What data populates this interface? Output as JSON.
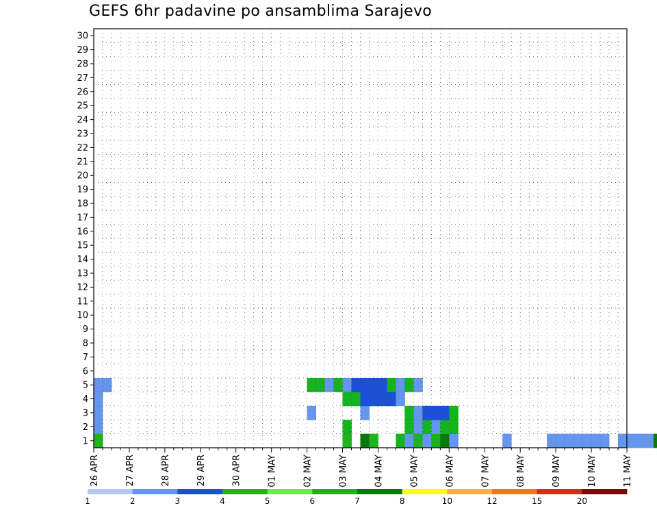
{
  "title": "GEFS 6hr padavine po ansamblima Sarajevo",
  "chart_data": {
    "type": "heatmap",
    "title": "GEFS 6hr padavine po ansamblima Sarajevo",
    "y_ticks": [
      "1",
      "2",
      "3",
      "4",
      "5",
      "6",
      "7",
      "8",
      "9",
      "10",
      "11",
      "12",
      "13",
      "14",
      "15",
      "16",
      "17",
      "18",
      "19",
      "20",
      "21",
      "22",
      "23",
      "24",
      "25",
      "26",
      "27",
      "28",
      "29",
      "30"
    ],
    "x_ticks": [
      "26 APR",
      "27 APR",
      "28 APR",
      "29 APR",
      "30 APR",
      "01 MAY",
      "02 MAY",
      "03 MAY",
      "04 MAY",
      "05 MAY",
      "06 MAY",
      "07 MAY",
      "08 MAY",
      "09 MAY",
      "10 MAY",
      "11 MAY"
    ],
    "steps_per_day": 4,
    "legend": {
      "labels": [
        "1",
        "2",
        "3",
        "4",
        "5",
        "6",
        "7",
        "8",
        "10",
        "12",
        "15",
        "20"
      ],
      "colors": [
        "#b4c8f5",
        "#6496ed",
        "#1e50d7",
        "#1eb41e",
        "#6ee650",
        "#14b41e",
        "#0a780a",
        "#ffff14",
        "#ffb432",
        "#f5780a",
        "#dc281e",
        "#780a0a"
      ]
    },
    "members": [
      {
        "member": 1,
        "cells": [
          [
            0,
            3
          ],
          [
            28,
            3
          ],
          [
            30,
            6
          ],
          [
            31,
            3
          ],
          [
            34,
            5
          ],
          [
            35,
            1
          ],
          [
            36,
            3
          ],
          [
            37,
            1
          ],
          [
            38,
            5
          ],
          [
            39,
            6
          ],
          [
            40,
            1
          ],
          [
            46,
            1
          ],
          [
            51,
            1
          ],
          [
            52,
            1
          ],
          [
            53,
            1
          ],
          [
            54,
            1
          ],
          [
            55,
            1
          ],
          [
            56,
            1
          ],
          [
            57,
            1
          ],
          [
            59,
            1
          ],
          [
            60,
            1
          ],
          [
            61,
            1
          ],
          [
            62,
            1
          ],
          [
            63,
            6
          ],
          [
            64,
            1
          ],
          [
            65,
            1
          ],
          [
            66,
            1
          ],
          [
            67,
            1
          ]
        ]
      },
      {
        "member": 2,
        "cells": [
          [
            0,
            1
          ],
          [
            28,
            5
          ],
          [
            35,
            5
          ],
          [
            36,
            1
          ],
          [
            37,
            5
          ],
          [
            38,
            1
          ],
          [
            39,
            5
          ],
          [
            40,
            5
          ]
        ]
      },
      {
        "member": 3,
        "cells": [
          [
            0,
            1
          ],
          [
            24,
            1
          ],
          [
            30,
            1
          ],
          [
            35,
            5
          ],
          [
            36,
            1
          ],
          [
            37,
            2
          ],
          [
            38,
            2
          ],
          [
            39,
            2
          ],
          [
            40,
            5
          ]
        ]
      },
      {
        "member": 4,
        "cells": [
          [
            0,
            1
          ],
          [
            28,
            5
          ],
          [
            29,
            5
          ],
          [
            30,
            2
          ],
          [
            31,
            2
          ],
          [
            32,
            2
          ],
          [
            33,
            2
          ],
          [
            34,
            1
          ]
        ]
      },
      {
        "member": 5,
        "cells": [
          [
            0,
            1
          ],
          [
            1,
            1
          ],
          [
            24,
            5
          ],
          [
            25,
            5
          ],
          [
            26,
            1
          ],
          [
            27,
            5
          ],
          [
            28,
            1
          ],
          [
            29,
            2
          ],
          [
            30,
            2
          ],
          [
            31,
            2
          ],
          [
            32,
            2
          ],
          [
            33,
            5
          ],
          [
            34,
            1
          ],
          [
            35,
            5
          ],
          [
            36,
            1
          ]
        ]
      }
    ]
  }
}
